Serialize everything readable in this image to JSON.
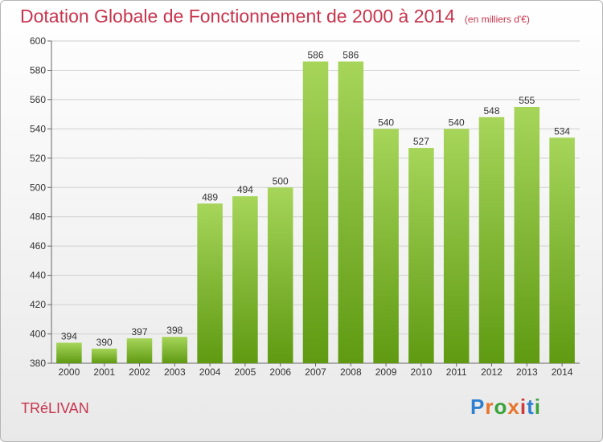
{
  "header": {
    "title": "Dotation Globale de Fonctionnement de 2000 à 2014",
    "unit": "(en milliers d'€)"
  },
  "footer": {
    "commune": "TRéLIVAN",
    "logo_text": "Proxiti"
  },
  "colors": {
    "title": "#c8344d",
    "bar_top": "#a6d55a",
    "bar_bottom": "#5f9a12",
    "grid": "#d0d0d0"
  },
  "chart_data": {
    "type": "bar",
    "title": "Dotation Globale de Fonctionnement de 2000 à 2014",
    "xlabel": "",
    "ylabel": "",
    "categories": [
      "2000",
      "2001",
      "2002",
      "2003",
      "2004",
      "2005",
      "2006",
      "2007",
      "2008",
      "2009",
      "2010",
      "2011",
      "2012",
      "2013",
      "2014"
    ],
    "values": [
      394,
      390,
      397,
      398,
      489,
      494,
      500,
      586,
      586,
      540,
      527,
      540,
      548,
      555,
      534
    ],
    "ylim": [
      380,
      600
    ],
    "yticks": [
      380,
      400,
      420,
      440,
      460,
      480,
      500,
      520,
      540,
      560,
      580,
      600
    ],
    "grid": true,
    "data_labels": true
  }
}
